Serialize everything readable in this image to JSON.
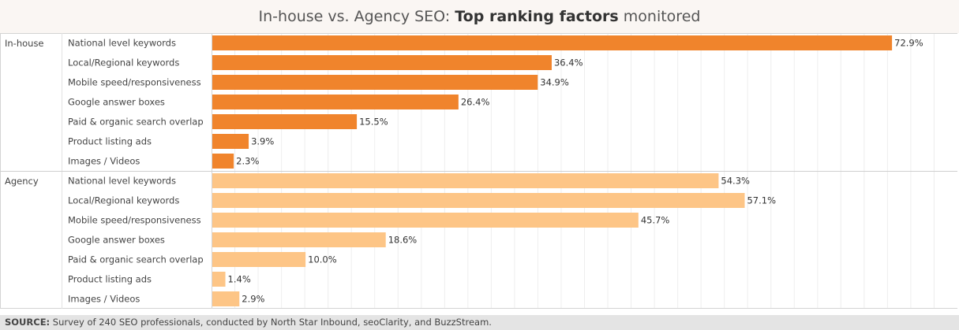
{
  "title": {
    "prefix": "In-house vs. Agency SEO: ",
    "bold": "Top ranking factors",
    "suffix": " monitored"
  },
  "colors": {
    "in_house": "#f0842c",
    "agency": "#fdc586"
  },
  "footer": {
    "label": "SOURCE:",
    "text": "  Survey of 240 SEO professionals, conducted by North Star Inbound, seoClarity, and BuzzStream."
  },
  "chart_data": {
    "type": "bar",
    "orientation": "horizontal",
    "title": "In-house vs. Agency SEO: Top ranking factors monitored",
    "xlim": [
      0,
      80
    ],
    "grid": true,
    "value_suffix": "%",
    "groups": [
      {
        "name": "In-house",
        "color": "#f0842c",
        "categories": [
          "National level keywords",
          "Local/Regional keywords",
          "Mobile speed/responsiveness",
          "Google answer boxes",
          "Paid & organic search overlap",
          "Product listing ads",
          "Images / Videos"
        ],
        "values": [
          72.9,
          36.4,
          34.9,
          26.4,
          15.5,
          3.9,
          2.3
        ]
      },
      {
        "name": "Agency",
        "color": "#fdc586",
        "categories": [
          "National level keywords",
          "Local/Regional keywords",
          "Mobile speed/responsiveness",
          "Google answer boxes",
          "Paid & organic search overlap",
          "Product listing ads",
          "Images / Videos"
        ],
        "values": [
          54.3,
          57.1,
          45.7,
          18.6,
          10.0,
          1.4,
          2.9
        ]
      }
    ]
  }
}
